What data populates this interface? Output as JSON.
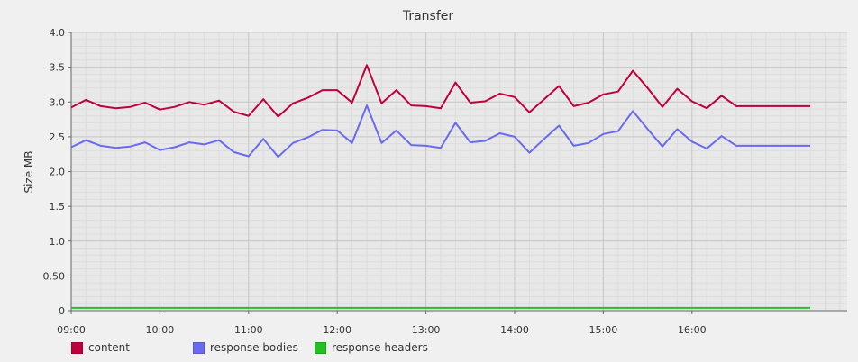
{
  "chart_data": {
    "type": "line",
    "title": "Transfer",
    "xlabel": "",
    "ylabel": "Size MB",
    "ylim": [
      0,
      4.0
    ],
    "y_ticks": [
      "0",
      "0.50",
      "1.0",
      "1.5",
      "2.0",
      "2.5",
      "3.0",
      "3.5",
      "4.0"
    ],
    "x_ticks": [
      "09:00",
      "10:00",
      "11:00",
      "12:00",
      "13:00",
      "14:00",
      "15:00",
      "16:00"
    ],
    "x_range": [
      "09:00",
      "17:45"
    ],
    "grid": true,
    "legend_position": "bottom-left",
    "x": [
      "09:00",
      "09:10",
      "09:20",
      "09:30",
      "09:40",
      "09:50",
      "10:00",
      "10:10",
      "10:20",
      "10:30",
      "10:40",
      "10:50",
      "11:00",
      "11:10",
      "11:20",
      "11:30",
      "11:40",
      "11:50",
      "12:00",
      "12:10",
      "12:20",
      "12:30",
      "12:40",
      "12:50",
      "13:00",
      "13:10",
      "13:20",
      "13:30",
      "13:40",
      "13:50",
      "14:00",
      "14:10",
      "14:20",
      "14:30",
      "14:40",
      "14:50",
      "15:00",
      "15:10",
      "15:20",
      "15:30",
      "15:40",
      "15:50",
      "16:00",
      "16:10",
      "16:20",
      "16:30",
      "16:40",
      "16:50",
      "17:00",
      "17:10",
      "17:20"
    ],
    "series": [
      {
        "name": "content",
        "color": "#c0003c",
        "values": [
          2.92,
          3.03,
          2.94,
          2.91,
          2.93,
          2.99,
          2.89,
          2.93,
          3.0,
          2.96,
          3.02,
          2.86,
          2.8,
          3.04,
          2.79,
          2.98,
          3.06,
          3.17,
          3.17,
          2.99,
          3.53,
          2.98,
          3.17,
          2.95,
          2.94,
          2.91,
          3.28,
          2.99,
          3.01,
          3.12,
          3.07,
          2.85,
          3.04,
          3.23,
          2.94,
          2.99,
          3.11,
          3.15,
          3.45,
          3.2,
          2.93,
          3.19,
          3.01,
          2.91,
          3.09,
          2.94,
          2.94,
          2.94,
          2.94,
          2.94,
          2.94
        ]
      },
      {
        "name": "response bodies",
        "color": "#6a6aee",
        "values": [
          2.35,
          2.45,
          2.37,
          2.34,
          2.36,
          2.42,
          2.31,
          2.35,
          2.42,
          2.39,
          2.45,
          2.28,
          2.22,
          2.47,
          2.21,
          2.41,
          2.49,
          2.6,
          2.59,
          2.41,
          2.95,
          2.41,
          2.59,
          2.38,
          2.37,
          2.34,
          2.7,
          2.42,
          2.44,
          2.55,
          2.5,
          2.27,
          2.47,
          2.66,
          2.37,
          2.41,
          2.54,
          2.58,
          2.87,
          2.61,
          2.36,
          2.61,
          2.43,
          2.33,
          2.51,
          2.37,
          2.37,
          2.37,
          2.37,
          2.37,
          2.37
        ]
      },
      {
        "name": "response headers",
        "color": "#22c022",
        "values": [
          0.04,
          0.04,
          0.04,
          0.04,
          0.04,
          0.04,
          0.04,
          0.04,
          0.04,
          0.04,
          0.04,
          0.04,
          0.04,
          0.04,
          0.04,
          0.04,
          0.04,
          0.04,
          0.04,
          0.04,
          0.04,
          0.04,
          0.04,
          0.04,
          0.04,
          0.04,
          0.04,
          0.04,
          0.04,
          0.04,
          0.04,
          0.04,
          0.04,
          0.04,
          0.04,
          0.04,
          0.04,
          0.04,
          0.04,
          0.04,
          0.04,
          0.04,
          0.04,
          0.04,
          0.04,
          0.04,
          0.04,
          0.04,
          0.04,
          0.04,
          0.04
        ]
      }
    ]
  }
}
